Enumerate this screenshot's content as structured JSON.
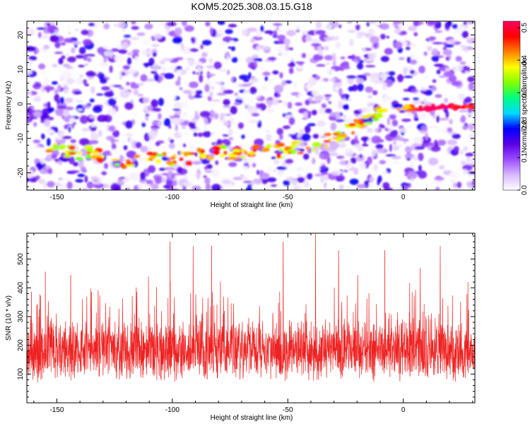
{
  "title": "KOM5.2025.308.03.15.G18",
  "chart_data": [
    {
      "type": "heatmap",
      "title": "KOM5.2025.308.03.15.G18",
      "xlabel": "Height of straight line (km)",
      "ylabel": "Frequency (Hz)",
      "xlim": [
        -163,
        31
      ],
      "ylim": [
        -25,
        24
      ],
      "xticks": [
        -150,
        -100,
        -50,
        0
      ],
      "yticks": [
        -20,
        -10,
        0,
        10,
        20
      ],
      "colorbar": {
        "label": "Normalized spectral amplitude",
        "range": [
          0.0,
          0.52
        ],
        "ticks": [
          0.0,
          0.1,
          0.2,
          0.3,
          0.4,
          0.5
        ],
        "colors": [
          "#ffffff",
          "#d8b8ff",
          "#9b4cff",
          "#5a00e6",
          "#0000ff",
          "#00d8ff",
          "#00ff80",
          "#80ff00",
          "#ffff00",
          "#ff8000",
          "#ff0000",
          "#ff0060"
        ]
      },
      "trace": {
        "points": [
          [
            -155,
            -14
          ],
          [
            -145,
            -13.5
          ],
          [
            -135,
            -14.5
          ],
          [
            -125,
            -16.5
          ],
          [
            -115,
            -16
          ],
          [
            -105,
            -15.5
          ],
          [
            -95,
            -16
          ],
          [
            -85,
            -14
          ],
          [
            -75,
            -14
          ],
          [
            -65,
            -13.5
          ],
          [
            -55,
            -14
          ],
          [
            -45,
            -13
          ],
          [
            -35,
            -11
          ],
          [
            -25,
            -8
          ],
          [
            -15,
            -4
          ],
          [
            -5,
            -1
          ],
          [
            5,
            -1.2
          ],
          [
            15,
            -1
          ],
          [
            25,
            -0.8
          ],
          [
            30,
            -0.8
          ]
        ],
        "peak_amplitude": 0.52
      }
    },
    {
      "type": "line",
      "xlabel": "Height of straight line (km)",
      "ylabel": "SNR (10 * v/v)",
      "xlim": [
        -163,
        31
      ],
      "ylim": [
        0,
        590
      ],
      "xticks": [
        -150,
        -100,
        -50,
        0
      ],
      "yticks": [
        100,
        200,
        300,
        400,
        500
      ],
      "color": "#ee2222",
      "series_summary": {
        "baseline_mean": 180,
        "baseline_spread": 90,
        "peaks": [
          [
            -161,
            385
          ],
          [
            -155,
            455
          ],
          [
            -144,
            445
          ],
          [
            -101,
            560
          ],
          [
            -91,
            545
          ],
          [
            -83,
            545
          ],
          [
            -52,
            560
          ],
          [
            -38,
            590
          ],
          [
            -28,
            530
          ],
          [
            -8,
            530
          ],
          [
            16,
            545
          ],
          [
            28,
            420
          ]
        ]
      }
    }
  ]
}
